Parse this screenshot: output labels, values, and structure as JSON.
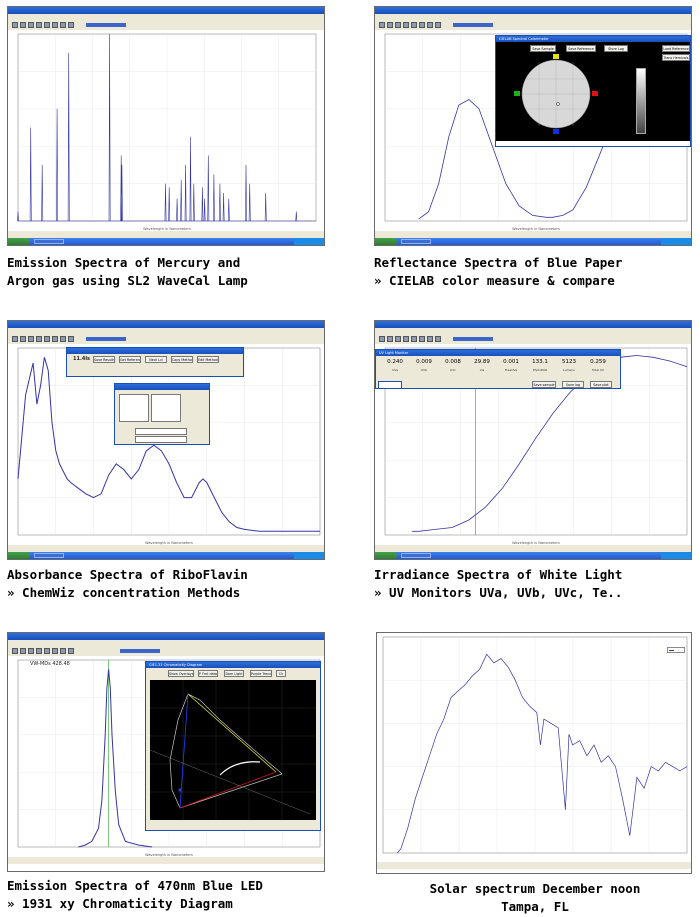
{
  "panels": [
    {
      "id": "mercury-argon",
      "caption_line1": "Emission Spectra of Mercury and",
      "caption_line2": "Argon gas using SL2 WaveCal Lamp",
      "caption_align": "left"
    },
    {
      "id": "blue-paper",
      "caption_line1": "Reflectance Spectra of Blue Paper",
      "caption_line2": "» CIELAB color measure & compare",
      "caption_align": "left",
      "dialog": {
        "title": "CIELAB Spectral Colorimeter",
        "buttons": [
          "Save Sample",
          "Save Reference",
          "Store Log",
          "Load Reference",
          "Trans Hemivals"
        ]
      }
    },
    {
      "id": "riboflavin",
      "caption_line1": "Absorbance Spectra of RiboFlavin",
      "caption_line2": "» ChemWiz concentration Methods",
      "caption_align": "left",
      "dialog": {
        "value": "11.4ls",
        "buttons": [
          "Save Results",
          "Get Reference",
          "Next Lvl",
          "Copy Method",
          "Edit Method"
        ]
      }
    },
    {
      "id": "white-light",
      "caption_line1": "Irradiance Spectra of White Light",
      "caption_line2": "» UV Monitors UVa, UVb, UVc, Te..",
      "caption_align": "left",
      "dialog": {
        "title": "UV Light Monitor",
        "readings": [
          {
            "value": "0.240",
            "label": "UVa"
          },
          {
            "value": "0.009",
            "label": "UVb"
          },
          {
            "value": "0.008",
            "label": "UVc"
          },
          {
            "value": "29.89",
            "label": "Vis"
          },
          {
            "value": "0.001",
            "label": "FreeUVa"
          },
          {
            "value": "133.1",
            "label": "PhotoPAR"
          },
          {
            "value": "5123",
            "label": "Lumens"
          },
          {
            "value": "0.259",
            "label": "Total UV"
          }
        ],
        "buttons": [
          "Save sample",
          "Save log",
          "Save plot"
        ]
      }
    },
    {
      "id": "blue-led",
      "caption_line1": "Emission Spectra of 470nm Blue LED",
      "caption_line2": "» 1931 xy Chromaticity Diagram",
      "caption_align": "left",
      "readout_title": "VW-MDs   428.48",
      "dialog": {
        "title": "CIE1.31 Chromaticity Diagram",
        "buttons": [
          "Show Overlays",
          "P Fmt data",
          "Dom Light",
          "Purple Trend",
          "Clr"
        ]
      }
    },
    {
      "id": "solar",
      "caption_line1": "Solar spectrum December noon",
      "caption_line2": "Tampa, FL",
      "caption_align": "center"
    }
  ],
  "chart_data": [
    {
      "type": "line",
      "title": "",
      "xlabel": "Wavelength in Nanometers",
      "ylabel": "",
      "xlim": [
        300,
        1100
      ],
      "ylim": [
        0,
        1
      ],
      "grid": true,
      "series": [
        {
          "x": [
            300,
            334,
            365,
            405,
            436,
            546,
            577,
            579,
            696,
            706,
            727,
            738,
            750,
            763,
            772,
            795,
            801,
            811,
            826,
            842,
            852,
            866,
            912,
            922,
            965,
            1047
          ],
          "values": [
            0.05,
            0.5,
            0.3,
            0.6,
            0.9,
            1.0,
            0.35,
            0.3,
            0.2,
            0.18,
            0.12,
            0.22,
            0.3,
            0.45,
            0.2,
            0.18,
            0.12,
            0.35,
            0.25,
            0.2,
            0.15,
            0.12,
            0.3,
            0.2,
            0.15,
            0.05
          ]
        }
      ]
    },
    {
      "type": "line",
      "title": "",
      "xlabel": "Wavelength in Nanometers",
      "ylabel": "",
      "xlim": [
        200,
        1100
      ],
      "ylim": [
        0,
        1
      ],
      "grid": true,
      "series": [
        {
          "x": [
            300,
            330,
            360,
            390,
            420,
            450,
            480,
            500,
            530,
            560,
            600,
            640,
            680,
            700,
            730,
            760,
            800,
            850,
            900,
            950,
            1000,
            1100
          ],
          "values": [
            0.01,
            0.05,
            0.2,
            0.45,
            0.62,
            0.65,
            0.6,
            0.5,
            0.35,
            0.2,
            0.08,
            0.03,
            0.02,
            0.02,
            0.03,
            0.06,
            0.18,
            0.4,
            0.6,
            0.72,
            0.8,
            0.85
          ]
        }
      ]
    },
    {
      "type": "line",
      "title": "",
      "xlabel": "Wavelength in Nanometers",
      "ylabel": "",
      "xlim": [
        200,
        600
      ],
      "ylim": [
        0,
        1
      ],
      "grid": true,
      "series": [
        {
          "x": [
            200,
            210,
            220,
            225,
            230,
            235,
            240,
            245,
            250,
            255,
            260,
            265,
            270,
            280,
            290,
            300,
            310,
            320,
            330,
            340,
            350,
            360,
            370,
            380,
            390,
            400,
            410,
            420,
            430,
            440,
            445,
            450,
            460,
            470,
            480,
            490,
            500,
            520,
            550,
            600
          ],
          "values": [
            0.3,
            0.75,
            0.92,
            0.7,
            0.8,
            0.95,
            0.88,
            0.6,
            0.45,
            0.38,
            0.34,
            0.3,
            0.28,
            0.25,
            0.22,
            0.2,
            0.22,
            0.32,
            0.38,
            0.35,
            0.3,
            0.35,
            0.45,
            0.48,
            0.45,
            0.38,
            0.28,
            0.2,
            0.2,
            0.28,
            0.3,
            0.28,
            0.2,
            0.12,
            0.07,
            0.04,
            0.03,
            0.02,
            0.02,
            0.02
          ]
        }
      ]
    },
    {
      "type": "line",
      "title": "",
      "xlabel": "Wavelength in Nanometers",
      "ylabel": "",
      "xlim": [
        200,
        1100
      ],
      "ylim": [
        0,
        1
      ],
      "grid": true,
      "series": [
        {
          "x": [
            280,
            300,
            350,
            400,
            450,
            500,
            550,
            600,
            650,
            700,
            750,
            800,
            850,
            900,
            950,
            1000,
            1050,
            1100
          ],
          "values": [
            0.02,
            0.02,
            0.03,
            0.04,
            0.08,
            0.15,
            0.25,
            0.38,
            0.52,
            0.65,
            0.76,
            0.85,
            0.91,
            0.95,
            0.96,
            0.95,
            0.93,
            0.9
          ]
        }
      ]
    },
    {
      "type": "line",
      "title": "",
      "xlabel": "Wavelength in Nanometers",
      "ylabel": "",
      "xlim": [
        200,
        1100
      ],
      "ylim": [
        0,
        1
      ],
      "grid": true,
      "series": [
        {
          "x": [
            380,
            400,
            420,
            440,
            450,
            460,
            465,
            470,
            475,
            480,
            490,
            500,
            520,
            560,
            600
          ],
          "values": [
            0,
            0.01,
            0.03,
            0.1,
            0.25,
            0.6,
            0.85,
            0.95,
            0.85,
            0.6,
            0.3,
            0.12,
            0.03,
            0.01,
            0
          ]
        }
      ]
    },
    {
      "type": "line",
      "title": "",
      "xlabel": "",
      "ylabel": "",
      "xlim": [
        250,
        1100
      ],
      "ylim": [
        0,
        1
      ],
      "grid": true,
      "legend": "top-right",
      "series": [
        {
          "x": [
            290,
            300,
            320,
            340,
            360,
            380,
            400,
            420,
            440,
            460,
            480,
            500,
            520,
            540,
            560,
            580,
            600,
            620,
            640,
            660,
            680,
            690,
            700,
            720,
            740,
            760,
            770,
            780,
            800,
            820,
            840,
            860,
            880,
            900,
            920,
            940,
            960,
            980,
            1000,
            1020,
            1040,
            1060,
            1080,
            1100
          ],
          "values": [
            0,
            0.02,
            0.12,
            0.25,
            0.35,
            0.45,
            0.55,
            0.62,
            0.72,
            0.75,
            0.78,
            0.82,
            0.85,
            0.92,
            0.88,
            0.9,
            0.86,
            0.8,
            0.72,
            0.68,
            0.65,
            0.5,
            0.62,
            0.6,
            0.58,
            0.2,
            0.55,
            0.5,
            0.52,
            0.45,
            0.5,
            0.42,
            0.45,
            0.4,
            0.25,
            0.08,
            0.35,
            0.3,
            0.4,
            0.38,
            0.42,
            0.4,
            0.38,
            0.4
          ]
        }
      ]
    }
  ]
}
